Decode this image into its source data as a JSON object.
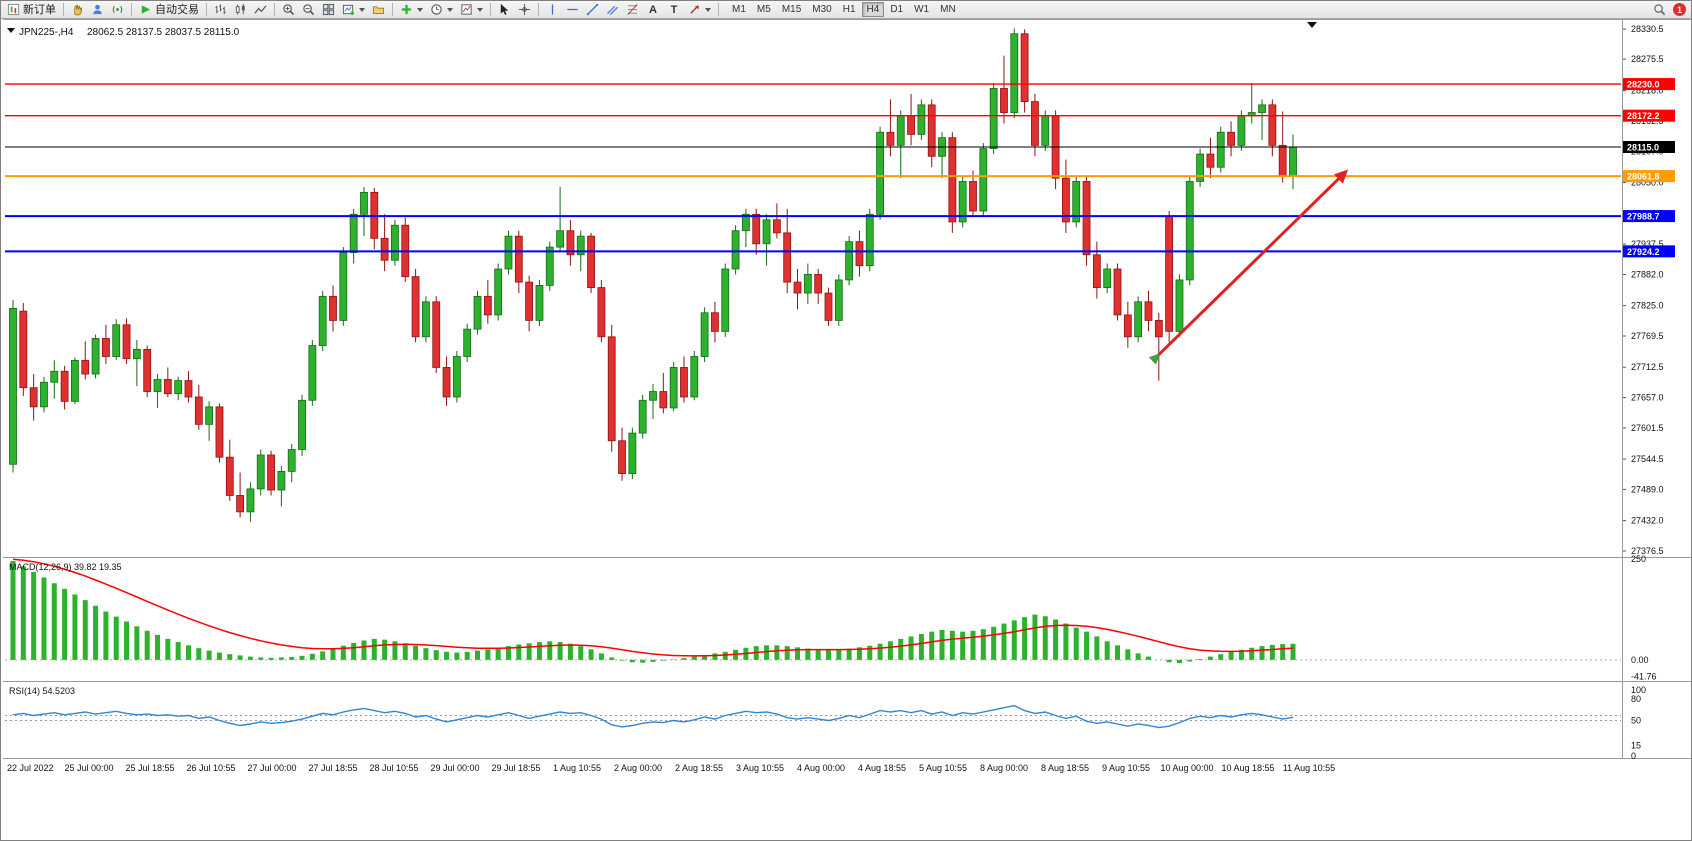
{
  "toolbar": {
    "new_order_label": "新订单",
    "autotrading_label": "自动交易",
    "timeframes": [
      "M1",
      "M5",
      "M15",
      "M30",
      "H1",
      "H4",
      "D1",
      "W1",
      "MN"
    ],
    "active_timeframe": "H4",
    "notification_count": "1",
    "text_icon": "A",
    "label_icon": "T"
  },
  "chart": {
    "symbol_period": "JPN225-,H4",
    "ohlc_text": "28062.5 28137.5 28037.5 28115.0",
    "price_ticks": [
      28330.5,
      28275.5,
      28218.0,
      28162.5,
      28107.0,
      28050.0,
      27993.5,
      27937.5,
      27882.0,
      27825.0,
      27769.5,
      27712.5,
      27657.0,
      27601.5,
      27544.5,
      27489.0,
      27432.0,
      27376.5
    ],
    "hlines": [
      {
        "price": 28230.0,
        "label": "28230.0",
        "color": "#ff0000",
        "width": 1.3
      },
      {
        "price": 28172.2,
        "label": "28172.2",
        "color": "#ff0000",
        "width": 1.3
      },
      {
        "price": 28115.0,
        "label": "28115.0",
        "color": "#000000",
        "width": 1
      },
      {
        "price": 28061.8,
        "label": "28061.8",
        "color": "#ff9c00",
        "width": 2
      },
      {
        "price": 27988.7,
        "label": "27988.7",
        "color": "#0000ff",
        "width": 2
      },
      {
        "price": 27924.2,
        "label": "27924.2",
        "color": "#0000ff",
        "width": 2
      }
    ],
    "time_labels": [
      "22 Jul 2022",
      "25 Jul 00:00",
      "25 Jul 18:55",
      "26 Jul 10:55",
      "27 Jul 00:00",
      "27 Jul 18:55",
      "28 Jul 10:55",
      "29 Jul 00:00",
      "29 Jul 18:55",
      "1 Aug 10:55",
      "2 Aug 00:00",
      "2 Aug 18:55",
      "3 Aug 10:55",
      "4 Aug 00:00",
      "4 Aug 18:55",
      "5 Aug 10:55",
      "8 Aug 00:00",
      "8 Aug 18:55",
      "9 Aug 10:55",
      "10 Aug 00:00",
      "10 Aug 18:55",
      "11 Aug 10:55"
    ],
    "colors": {
      "up": "#2db22d",
      "up_stroke": "#176917",
      "down": "#e03030",
      "down_stroke": "#8f1414",
      "arrow": "#dd2222",
      "marker": "#3f9e3f",
      "rsi_line": "#2f86d6",
      "macd_hist": "#2db22d",
      "macd_signal": "#ff0000"
    }
  },
  "chart_data": {
    "type": "candlestick",
    "symbol": "JPN225-",
    "timeframe": "H4",
    "y_range": [
      27371,
      28338
    ],
    "candles": [
      [
        27535,
        27835,
        27520,
        27820
      ],
      [
        27815,
        27830,
        27660,
        27675
      ],
      [
        27675,
        27700,
        27615,
        27640
      ],
      [
        27640,
        27695,
        27630,
        27685
      ],
      [
        27685,
        27725,
        27655,
        27705
      ],
      [
        27705,
        27715,
        27635,
        27650
      ],
      [
        27650,
        27730,
        27645,
        27725
      ],
      [
        27725,
        27760,
        27690,
        27700
      ],
      [
        27700,
        27772,
        27692,
        27765
      ],
      [
        27765,
        27790,
        27718,
        27732
      ],
      [
        27732,
        27800,
        27726,
        27790
      ],
      [
        27790,
        27802,
        27718,
        27728
      ],
      [
        27728,
        27762,
        27678,
        27745
      ],
      [
        27745,
        27752,
        27658,
        27668
      ],
      [
        27668,
        27700,
        27638,
        27690
      ],
      [
        27690,
        27712,
        27658,
        27664
      ],
      [
        27664,
        27695,
        27652,
        27688
      ],
      [
        27688,
        27705,
        27648,
        27658
      ],
      [
        27658,
        27680,
        27598,
        27608
      ],
      [
        27608,
        27650,
        27578,
        27640
      ],
      [
        27640,
        27646,
        27538,
        27548
      ],
      [
        27548,
        27580,
        27468,
        27478
      ],
      [
        27478,
        27520,
        27438,
        27448
      ],
      [
        27448,
        27502,
        27430,
        27490
      ],
      [
        27490,
        27562,
        27478,
        27552
      ],
      [
        27552,
        27560,
        27478,
        27488
      ],
      [
        27488,
        27532,
        27458,
        27522
      ],
      [
        27522,
        27572,
        27502,
        27562
      ],
      [
        27562,
        27662,
        27550,
        27652
      ],
      [
        27652,
        27762,
        27642,
        27752
      ],
      [
        27752,
        27852,
        27742,
        27842
      ],
      [
        27842,
        27862,
        27778,
        27798
      ],
      [
        27798,
        27932,
        27788,
        27922
      ],
      [
        27922,
        28002,
        27902,
        27992
      ],
      [
        27992,
        28042,
        27952,
        28032
      ],
      [
        28032,
        28040,
        27928,
        27948
      ],
      [
        27948,
        27992,
        27888,
        27908
      ],
      [
        27908,
        27982,
        27898,
        27972
      ],
      [
        27972,
        27986,
        27868,
        27878
      ],
      [
        27878,
        27892,
        27758,
        27768
      ],
      [
        27768,
        27842,
        27758,
        27832
      ],
      [
        27832,
        27842,
        27702,
        27712
      ],
      [
        27712,
        27732,
        27642,
        27658
      ],
      [
        27658,
        27742,
        27648,
        27732
      ],
      [
        27732,
        27792,
        27722,
        27782
      ],
      [
        27782,
        27852,
        27772,
        27842
      ],
      [
        27842,
        27872,
        27792,
        27808
      ],
      [
        27808,
        27902,
        27798,
        27892
      ],
      [
        27892,
        27962,
        27882,
        27952
      ],
      [
        27952,
        27962,
        27848,
        27868
      ],
      [
        27868,
        27880,
        27778,
        27798
      ],
      [
        27798,
        27872,
        27788,
        27862
      ],
      [
        27862,
        27942,
        27852,
        27932
      ],
      [
        27932,
        28042,
        27922,
        27962
      ],
      [
        27962,
        27982,
        27898,
        27918
      ],
      [
        27918,
        27962,
        27888,
        27952
      ],
      [
        27952,
        27958,
        27848,
        27858
      ],
      [
        27858,
        27872,
        27758,
        27768
      ],
      [
        27768,
        27790,
        27558,
        27578
      ],
      [
        27578,
        27602,
        27505,
        27518
      ],
      [
        27518,
        27602,
        27508,
        27592
      ],
      [
        27592,
        27662,
        27582,
        27652
      ],
      [
        27652,
        27682,
        27618,
        27668
      ],
      [
        27668,
        27702,
        27628,
        27638
      ],
      [
        27638,
        27722,
        27632,
        27712
      ],
      [
        27712,
        27732,
        27648,
        27658
      ],
      [
        27658,
        27742,
        27652,
        27732
      ],
      [
        27732,
        27822,
        27722,
        27812
      ],
      [
        27812,
        27832,
        27758,
        27778
      ],
      [
        27778,
        27902,
        27768,
        27892
      ],
      [
        27892,
        27972,
        27882,
        27962
      ],
      [
        27962,
        28002,
        27932,
        27992
      ],
      [
        27992,
        28002,
        27918,
        27938
      ],
      [
        27938,
        27992,
        27898,
        27982
      ],
      [
        27982,
        28012,
        27948,
        27958
      ],
      [
        27958,
        28002,
        27848,
        27868
      ],
      [
        27868,
        27892,
        27818,
        27848
      ],
      [
        27848,
        27902,
        27828,
        27882
      ],
      [
        27882,
        27892,
        27828,
        27848
      ],
      [
        27848,
        27858,
        27788,
        27798
      ],
      [
        27798,
        27882,
        27788,
        27872
      ],
      [
        27872,
        27952,
        27862,
        27942
      ],
      [
        27942,
        27962,
        27878,
        27898
      ],
      [
        27898,
        28002,
        27888,
        27992
      ],
      [
        27992,
        28152,
        27982,
        28142
      ],
      [
        28142,
        28202,
        28098,
        28118
      ],
      [
        28118,
        28182,
        28058,
        28172
      ],
      [
        28172,
        28212,
        28118,
        28138
      ],
      [
        28138,
        28202,
        28128,
        28192
      ],
      [
        28192,
        28202,
        28078,
        28098
      ],
      [
        28098,
        28142,
        28058,
        28132
      ],
      [
        28132,
        28142,
        27958,
        27978
      ],
      [
        27978,
        28062,
        27968,
        28052
      ],
      [
        28052,
        28072,
        27988,
        27998
      ],
      [
        27998,
        28122,
        27988,
        28112
      ],
      [
        28112,
        28232,
        28102,
        28222
      ],
      [
        28222,
        28282,
        28158,
        28178
      ],
      [
        28178,
        28332,
        28168,
        28322
      ],
      [
        28322,
        28330,
        28178,
        28198
      ],
      [
        28198,
        28212,
        28098,
        28118
      ],
      [
        28118,
        28182,
        28108,
        28172
      ],
      [
        28172,
        28182,
        28038,
        28058
      ],
      [
        28058,
        28092,
        27958,
        27978
      ],
      [
        27978,
        28062,
        27968,
        28052
      ],
      [
        28052,
        28062,
        27898,
        27918
      ],
      [
        27918,
        27942,
        27838,
        27858
      ],
      [
        27858,
        27902,
        27848,
        27892
      ],
      [
        27892,
        27902,
        27798,
        27808
      ],
      [
        27808,
        27832,
        27748,
        27768
      ],
      [
        27768,
        27842,
        27758,
        27832
      ],
      [
        27832,
        27852,
        27778,
        27798
      ],
      [
        27798,
        27812,
        27688,
        27768
      ],
      [
        27988,
        27998,
        27758,
        27778
      ],
      [
        27778,
        27882,
        27768,
        27872
      ],
      [
        27872,
        28062,
        27862,
        28052
      ],
      [
        28052,
        28112,
        28042,
        28102
      ],
      [
        28102,
        28132,
        28058,
        28078
      ],
      [
        28078,
        28152,
        28068,
        28142
      ],
      [
        28142,
        28162,
        28098,
        28118
      ],
      [
        28118,
        28182,
        28108,
        28172
      ],
      [
        28172,
        28232,
        28158,
        28178
      ],
      [
        28178,
        28202,
        28128,
        28192
      ],
      [
        28192,
        28202,
        28098,
        28118
      ],
      [
        28118,
        28180,
        28050,
        28062
      ],
      [
        28062.5,
        28137.5,
        28037.5,
        28115.0
      ]
    ],
    "macd": {
      "label": "MACD(12,26,9) 39.82 19.35",
      "range": [
        -45,
        250
      ],
      "axis": [
        {
          "v": 250,
          "t": "250"
        },
        {
          "v": 0,
          "t": "0.00"
        },
        {
          "v": -41.76,
          "t": "-41.76"
        }
      ],
      "hist": [
        245,
        232,
        218,
        204,
        190,
        176,
        162,
        148,
        134,
        120,
        107,
        95,
        83,
        72,
        62,
        52,
        44,
        36,
        29,
        23,
        18,
        14,
        11,
        8,
        6,
        5,
        6,
        7,
        10,
        15,
        21,
        28,
        35,
        42,
        48,
        52,
        50,
        46,
        41,
        35,
        29,
        24,
        20,
        18,
        20,
        23,
        26,
        30,
        34,
        38,
        41,
        44,
        46,
        44,
        40,
        34,
        26,
        16,
        6,
        -2,
        -6,
        -7,
        -5,
        -2,
        1,
        4,
        8,
        12,
        16,
        20,
        25,
        30,
        34,
        36,
        36,
        34,
        31,
        28,
        26,
        25,
        26,
        28,
        31,
        35,
        40,
        46,
        52,
        58,
        64,
        70,
        74,
        72,
        70,
        72,
        76,
        82,
        90,
        98,
        106,
        112,
        108,
        100,
        90,
        80,
        70,
        58,
        46,
        36,
        26,
        16,
        8,
        0,
        -6,
        -8,
        -4,
        2,
        8,
        14,
        20,
        25,
        30,
        34,
        37,
        39,
        39.82
      ]
    },
    "rsi": {
      "label": "RSI(14) 54.5203",
      "range": [
        0,
        100
      ],
      "levels": [
        57,
        50
      ],
      "axis": [
        {
          "v": 100,
          "t": "100"
        },
        {
          "v": 80,
          "t": "80"
        },
        {
          "v": 50,
          "t": "50"
        },
        {
          "v": 15,
          "t": "15"
        },
        {
          "v": 0,
          "t": "0"
        }
      ],
      "values": [
        58,
        60,
        57,
        59,
        61,
        58,
        60,
        62,
        59,
        61,
        63,
        60,
        58,
        59,
        57,
        58,
        56,
        57,
        53,
        55,
        50,
        46,
        43,
        45,
        48,
        46,
        47,
        49,
        52,
        56,
        60,
        58,
        62,
        65,
        67,
        64,
        61,
        63,
        60,
        55,
        57,
        52,
        48,
        51,
        54,
        57,
        55,
        58,
        61,
        57,
        53,
        56,
        59,
        62,
        60,
        61,
        57,
        52,
        44,
        41,
        43,
        46,
        48,
        47,
        50,
        48,
        51,
        55,
        52,
        57,
        60,
        63,
        61,
        62,
        59,
        54,
        52,
        54,
        52,
        50,
        53,
        57,
        54,
        59,
        64,
        62,
        64,
        61,
        64,
        59,
        62,
        57,
        61,
        59,
        62,
        65,
        68,
        71,
        64,
        60,
        62,
        57,
        53,
        56,
        49,
        46,
        48,
        45,
        42,
        45,
        43,
        40,
        42,
        47,
        53,
        56,
        54,
        57,
        55,
        58,
        60,
        58,
        55,
        52,
        54.5
      ]
    },
    "trend_arrow": {
      "from": {
        "x": 1152,
        "price": 27725
      },
      "to": {
        "x": 1345,
        "price": 28070
      }
    }
  }
}
